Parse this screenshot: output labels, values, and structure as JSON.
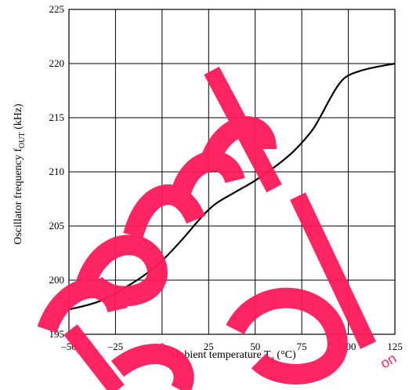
{
  "chart_data": {
    "type": "line",
    "title": "",
    "xlabel": {
      "main": "Ambient temperature  T",
      "sub": "a",
      "unit": "  (°C)"
    },
    "ylabel": {
      "main": "Oscillator frequency  f",
      "sub": "OUT",
      "unit": "  (kHz)"
    },
    "xlim": [
      -50,
      125
    ],
    "ylim": [
      195,
      225
    ],
    "grid": true,
    "x_ticks": [
      -50,
      -25,
      0,
      25,
      50,
      75,
      100,
      125
    ],
    "x_tick_labels": [
      "–50",
      "–25",
      "0",
      "25",
      "50",
      "75",
      "100",
      "125"
    ],
    "y_ticks": [
      195,
      200,
      205,
      210,
      215,
      220,
      225
    ],
    "y_tick_labels": [
      "195",
      "200",
      "205",
      "210",
      "215",
      "220",
      "225"
    ],
    "series": [
      {
        "color": "#000000",
        "x": [
          -50,
          -40,
          -30,
          -20,
          -10,
          0,
          10,
          20,
          25,
          30,
          40,
          50,
          60,
          70,
          80,
          85,
          90,
          95,
          100,
          110,
          125
        ],
        "y": [
          197.3,
          197.7,
          198.3,
          199.3,
          200.4,
          201.8,
          203.6,
          205.6,
          206.5,
          207.2,
          208.2,
          209.2,
          210.4,
          211.8,
          213.7,
          215.1,
          216.7,
          218.1,
          218.9,
          219.5,
          220.0
        ]
      }
    ]
  },
  "watermark": {
    "color": "#ff1a5a",
    "words": [
      "Cancel",
      "led"
    ],
    "small_text": "on"
  }
}
